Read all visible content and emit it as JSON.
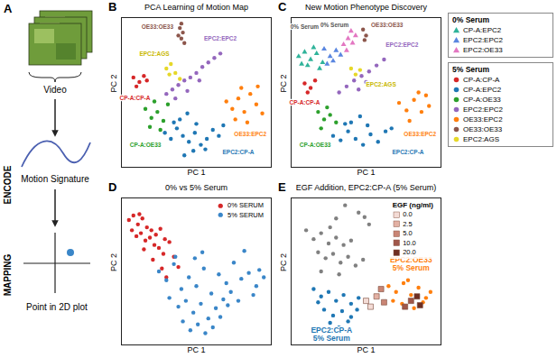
{
  "panel_a": {
    "panel": "A",
    "steps": [
      "Video",
      "Motion Signature",
      "Point in 2D plot"
    ],
    "stages": [
      "ENCODE",
      "MAPPING"
    ]
  },
  "chart_data": [
    {
      "panel": "B",
      "type": "scatter",
      "title": "PCA Learning of Motion Map",
      "x_label": "PC 1",
      "y_label": "PC 2",
      "xlim": [
        0,
        10
      ],
      "ylim": [
        0,
        10
      ],
      "xticks": [],
      "yticks": [],
      "tick_labels": false,
      "grid": false,
      "series": [
        {
          "color": "#d62728",
          "marker": "circle",
          "x": [
            0.8,
            1.2,
            1.5,
            1.0,
            1.7
          ],
          "y": [
            6.0,
            5.7,
            6.1,
            5.4,
            5.8
          ]
        },
        {
          "color": "#e6d829",
          "marker": "circle",
          "x": [
            3.0,
            3.3,
            3.6,
            3.9,
            3.2
          ],
          "y": [
            6.6,
            6.9,
            6.3,
            5.9,
            6.2
          ]
        },
        {
          "color": "#8c564b",
          "marker": "circle",
          "x": [
            3.9,
            4.1,
            4.0,
            3.8,
            4.2,
            4.0
          ],
          "y": [
            9.3,
            9.0,
            8.6,
            8.8,
            8.3,
            9.6
          ]
        },
        {
          "color": "#9467bd",
          "marker": "circle",
          "x": [
            3.0,
            3.4,
            3.8,
            4.2,
            4.6,
            5.0,
            5.4,
            5.8,
            6.2,
            4.4,
            3.6,
            5.2,
            6.6
          ],
          "y": [
            4.9,
            5.2,
            5.5,
            5.8,
            6.0,
            6.3,
            6.7,
            7.0,
            7.3,
            5.1,
            4.6,
            5.8,
            7.6
          ]
        },
        {
          "color": "#2ca02c",
          "marker": "circle",
          "x": [
            1.6,
            2.0,
            2.4,
            2.8,
            3.1,
            1.9,
            2.6,
            2.2
          ],
          "y": [
            3.9,
            3.3,
            3.7,
            3.1,
            4.2,
            2.7,
            2.5,
            4.4
          ]
        },
        {
          "color": "#1f77b4",
          "marker": "circle",
          "x": [
            2.9,
            3.3,
            3.7,
            4.1,
            4.5,
            4.9,
            5.3,
            5.7,
            6.1,
            6.5,
            3.9,
            4.4,
            5.0,
            3.5,
            4.8,
            5.6,
            6.8,
            4.2
          ],
          "y": [
            2.3,
            1.9,
            2.6,
            2.1,
            1.7,
            2.3,
            1.5,
            1.9,
            2.5,
            2.1,
            3.2,
            3.6,
            2.9,
            3.0,
            1.1,
            1.2,
            2.8,
            0.8
          ]
        },
        {
          "color": "#ff7f0e",
          "marker": "circle",
          "x": [
            7.0,
            7.4,
            7.8,
            8.2,
            8.6,
            9.0,
            9.4,
            7.6,
            8.4,
            8.0,
            9.1
          ],
          "y": [
            4.4,
            3.9,
            4.6,
            3.7,
            4.9,
            4.2,
            3.6,
            3.2,
            3.0,
            5.3,
            5.4
          ]
        }
      ],
      "annotations": [
        {
          "text": "CP-A:CP-A",
          "color": "#d62728",
          "x": 0.9,
          "y": 4.6
        },
        {
          "text": "OE33:OE33",
          "color": "#8c564b",
          "x": 2.4,
          "y": 9.4
        },
        {
          "text": "EPC2:AGS",
          "color": "#c9b800",
          "x": 2.2,
          "y": 7.6
        },
        {
          "text": "EPC2:EPC2",
          "color": "#9467bd",
          "x": 6.6,
          "y": 8.6
        },
        {
          "text": "OE33:EPC2",
          "color": "#ff7f0e",
          "x": 8.6,
          "y": 2.2
        },
        {
          "text": "CP-A:OE33",
          "color": "#2ca02c",
          "x": 1.6,
          "y": 1.5
        },
        {
          "text": "EPC2:CP-A",
          "color": "#1f77b4",
          "x": 7.8,
          "y": 1.0
        }
      ]
    },
    {
      "panel": "C",
      "type": "scatter",
      "title": "New Motion Phenotype Discovery",
      "x_label": "PC 1",
      "y_label": "PC 2",
      "xlim": [
        0,
        10
      ],
      "ylim": [
        0,
        10
      ],
      "xticks": [],
      "yticks": [],
      "tick_labels": false,
      "grid": false,
      "legend": "right",
      "series_groups": [
        {
          "title": "0% Serum",
          "series": [
            {
              "name": "CP-A:EPC2",
              "color": "#2fb39a",
              "marker": "triangle",
              "x": [
                0.5,
                0.9,
                1.3,
                1.7,
                2.1,
                1.1,
                1.5,
                0.7,
                1.9
              ],
              "y": [
                7.4,
                7.7,
                7.2,
                7.6,
                7.0,
                6.8,
                8.0,
                6.9,
                6.6
              ]
            },
            {
              "name": "EPC2:EPC2",
              "color": "#5a86e0",
              "marker": "triangle",
              "x": [
                2.2,
                2.6,
                3.0,
                2.4,
                2.8,
                3.3
              ],
              "y": [
                7.9,
                7.4,
                7.8,
                6.9,
                7.1,
                7.5
              ]
            },
            {
              "name": "EPC2:OE33",
              "color": "#e377c2",
              "marker": "triangle",
              "x": [
                3.5,
                3.8,
                4.1,
                3.7,
                4.3,
                4.0
              ],
              "y": [
                8.2,
                8.6,
                8.3,
                7.8,
                8.8,
                9.1
              ]
            }
          ]
        },
        {
          "title": "5% Serum",
          "series": [
            {
              "name": "CP-A:CP-A",
              "color": "#d62728",
              "marker": "circle",
              "x": [
                0.9,
                1.3,
                1.6,
                1.1
              ],
              "y": [
                5.6,
                5.3,
                5.8,
                5.0
              ]
            },
            {
              "name": "CP-A:EPC2",
              "color": "#1f77b4",
              "marker": "circle",
              "x": [
                2.8,
                3.3,
                3.8,
                4.3,
                4.8,
                5.3,
                5.8,
                6.3,
                4.0,
                4.6,
                5.1,
                3.6,
                6.7
              ],
              "y": [
                2.1,
                1.8,
                2.4,
                1.9,
                1.5,
                2.2,
                1.7,
                2.4,
                3.0,
                3.4,
                2.8,
                2.9,
                2.6
              ]
            },
            {
              "name": "CP-A:OE33",
              "color": "#2ca02c",
              "marker": "circle",
              "x": [
                1.8,
                2.2,
                2.6,
                3.0,
                2.0,
                2.4
              ],
              "y": [
                3.7,
                3.2,
                3.5,
                3.0,
                2.6,
                4.0
              ]
            },
            {
              "name": "EPC2:EPC2",
              "color": "#9467bd",
              "marker": "circle",
              "x": [
                3.2,
                3.7,
                4.2,
                4.7,
                5.2,
                5.7,
                6.2,
                4.5,
                5.0
              ],
              "y": [
                5.0,
                5.4,
                5.8,
                6.1,
                6.4,
                6.8,
                7.2,
                5.2,
                5.7
              ]
            },
            {
              "name": "OE33:EPC2",
              "color": "#ff7f0e",
              "marker": "circle",
              "x": [
                7.2,
                7.7,
                8.2,
                8.7,
                9.2,
                7.9,
                8.5,
                9.0
              ],
              "y": [
                4.3,
                3.8,
                4.5,
                3.7,
                4.1,
                3.1,
                5.0,
                4.8
              ]
            },
            {
              "name": "OE33:OE33",
              "color": "#8c564b",
              "marker": "circle",
              "x": [
                4.8,
                5.0,
                4.9
              ],
              "y": [
                9.2,
                8.8,
                8.5
              ]
            },
            {
              "name": "EPC2:AGS",
              "color": "#e6d829",
              "marker": "circle",
              "x": [
                4.0,
                4.3,
                4.6
              ],
              "y": [
                6.6,
                6.2,
                6.5
              ]
            }
          ]
        }
      ],
      "annotations": [
        {
          "text": "0% Serum",
          "color": "#555555",
          "x": 0.9,
          "y": 9.4
        },
        {
          "text": "0% Serum",
          "color": "#555555",
          "x": 2.9,
          "y": 9.5
        },
        {
          "text": "CP-A:CP-A",
          "color": "#d62728",
          "x": 0.9,
          "y": 4.3
        },
        {
          "text": "OE33:OE33",
          "color": "#8c564b",
          "x": 6.4,
          "y": 9.5
        },
        {
          "text": "EPC2:AGS",
          "color": "#c9b800",
          "x": 6.0,
          "y": 5.5
        },
        {
          "text": "EPC2:EPC2",
          "color": "#9467bd",
          "x": 7.4,
          "y": 8.2
        },
        {
          "text": "OE33:EPC2",
          "color": "#ff7f0e",
          "x": 8.6,
          "y": 2.2
        },
        {
          "text": "CP-A:OE33",
          "color": "#2ca02c",
          "x": 1.6,
          "y": 1.5
        },
        {
          "text": "EPC2:CP-A",
          "color": "#1f77b4",
          "x": 7.8,
          "y": 1.0
        }
      ]
    },
    {
      "panel": "D",
      "type": "scatter",
      "title": "0% vs 5% Serum",
      "x_label": "PC 1",
      "y_label": "PC 2",
      "xlim": [
        0,
        10
      ],
      "ylim": [
        0,
        10
      ],
      "xticks": [],
      "yticks": [],
      "tick_labels": false,
      "grid": false,
      "legend": "top-right",
      "series": [
        {
          "name": "0% SERUM",
          "color": "#d62728",
          "marker": "circle",
          "x": [
            0.5,
            0.8,
            1.1,
            1.4,
            1.7,
            2.0,
            2.3,
            2.6,
            2.9,
            3.2,
            0.7,
            1.0,
            1.3,
            1.6,
            1.9,
            2.2,
            2.5,
            2.8,
            3.5,
            3.8,
            1.5,
            2.1,
            2.7,
            3.0,
            1.2
          ],
          "y": [
            8.5,
            8.8,
            8.2,
            8.6,
            8.0,
            7.8,
            7.5,
            7.9,
            7.2,
            7.0,
            7.8,
            7.4,
            7.6,
            7.1,
            7.3,
            6.8,
            6.6,
            6.2,
            6.0,
            5.3,
            6.5,
            5.8,
            5.2,
            4.6,
            8.9
          ]
        },
        {
          "name": "5% SERUM",
          "color": "#3a86c8",
          "marker": "circle",
          "x": [
            2.5,
            3.0,
            3.5,
            4.0,
            4.5,
            5.0,
            5.5,
            6.0,
            6.5,
            7.0,
            7.5,
            8.0,
            8.5,
            9.0,
            9.5,
            3.2,
            3.8,
            4.3,
            4.8,
            5.3,
            5.8,
            6.3,
            6.8,
            7.3,
            4.1,
            4.6,
            5.1,
            5.6,
            6.1,
            6.6,
            7.1,
            8.2,
            8.8,
            3.6,
            5.4,
            4.9,
            7.8,
            9.2
          ],
          "y": [
            5.0,
            4.4,
            5.5,
            3.8,
            4.6,
            4.0,
            5.2,
            3.5,
            4.8,
            4.2,
            5.6,
            4.5,
            4.9,
            4.0,
            4.6,
            3.2,
            2.6,
            3.0,
            2.2,
            2.8,
            1.8,
            2.5,
            3.1,
            3.6,
            1.6,
            1.0,
            1.4,
            0.8,
            1.2,
            1.9,
            2.7,
            6.4,
            3.4,
            6.0,
            6.3,
            5.9,
            3.0,
            5.1
          ]
        }
      ]
    },
    {
      "panel": "E",
      "type": "scatter",
      "title": "EGF Addition, EPC2:CP-A (5% Serum)",
      "x_label": "PC 1",
      "y_label": "PC 2",
      "xlim": [
        0,
        10
      ],
      "ylim": [
        0,
        10
      ],
      "xticks": [],
      "yticks": [],
      "tick_labels": false,
      "grid": false,
      "legend": "top-right",
      "legend_title": "EGF (ng/ml)",
      "series": [
        {
          "color": "#808080",
          "marker": "circle",
          "x": [
            1.0,
            1.5,
            2.0,
            2.5,
            3.0,
            3.5,
            4.0,
            1.8,
            2.3,
            2.8,
            3.3,
            3.8,
            4.3,
            4.8,
            2.0,
            3.2,
            4.5,
            3.6,
            4.9,
            5.2,
            3.0,
            2.6
          ],
          "y": [
            7.8,
            7.2,
            7.6,
            6.9,
            7.3,
            6.8,
            7.1,
            6.3,
            5.9,
            6.2,
            5.6,
            6.0,
            5.4,
            5.8,
            5.0,
            4.8,
            9.0,
            9.5,
            8.7,
            8.2,
            8.6,
            8.0
          ]
        },
        {
          "color": "#1f77b4",
          "marker": "circle",
          "x": [
            1.5,
            2.0,
            2.5,
            3.0,
            3.5,
            4.0,
            4.5,
            2.2,
            2.8,
            3.4,
            4.0,
            1.8,
            2.6,
            3.2,
            3.8,
            4.4
          ],
          "y": [
            3.8,
            3.3,
            3.6,
            3.0,
            3.4,
            2.8,
            3.2,
            2.4,
            2.0,
            2.3,
            1.9,
            2.9,
            1.5,
            1.2,
            1.6,
            2.4
          ]
        },
        {
          "color": "#ff7f0e",
          "marker": "circle",
          "x": [
            6.5,
            7.0,
            7.5,
            8.0,
            8.5,
            9.0,
            6.8,
            7.4,
            8.2,
            8.8,
            9.3,
            7.8
          ],
          "y": [
            4.0,
            3.6,
            4.2,
            3.4,
            3.9,
            3.2,
            3.0,
            2.8,
            2.5,
            2.9,
            3.6,
            4.4
          ]
        },
        {
          "name": "0.0",
          "color": "#f4dcd6",
          "marker": "square",
          "x": [
            5.0,
            5.3
          ],
          "y": [
            3.0,
            2.6
          ]
        },
        {
          "name": "2.5",
          "color": "#e3b1a4",
          "marker": "square",
          "x": [
            5.7
          ],
          "y": [
            3.3
          ]
        },
        {
          "name": "5.0",
          "color": "#c98575",
          "marker": "square",
          "x": [
            6.0,
            6.2
          ],
          "y": [
            3.8,
            2.9
          ]
        },
        {
          "name": "10.0",
          "color": "#a0574a",
          "marker": "square",
          "x": [
            7.6,
            8.0
          ],
          "y": [
            2.6,
            3.0
          ]
        },
        {
          "name": "20.0",
          "color": "#6e2e22",
          "marker": "square",
          "x": [
            8.4,
            8.6
          ],
          "y": [
            3.3,
            2.7
          ]
        }
      ],
      "annotations": [
        {
          "text": "EPC2:OE33\n5% Serum",
          "color": "#ff7f0e",
          "x": 8.0,
          "y": 5.5
        },
        {
          "text": "EPC2:CP-A\n5% Serum",
          "color": "#1f77b4",
          "x": 2.7,
          "y": 0.7
        }
      ]
    }
  ]
}
